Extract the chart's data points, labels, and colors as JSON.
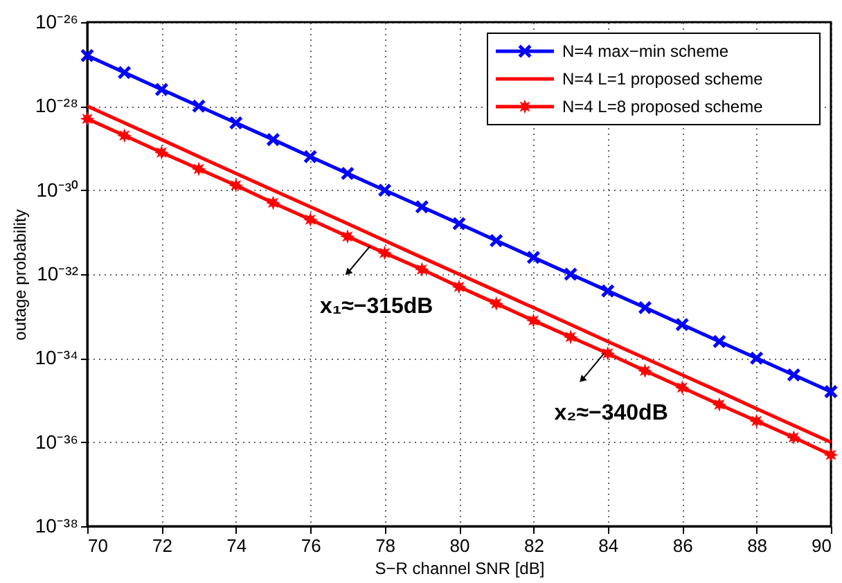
{
  "chart_data": {
    "type": "line",
    "xlabel": "S−R channel SNR [dB]",
    "ylabel": "outage probability",
    "x": [
      70,
      71,
      72,
      73,
      74,
      75,
      76,
      77,
      78,
      79,
      80,
      81,
      82,
      83,
      84,
      85,
      86,
      87,
      88,
      89,
      90
    ],
    "series": [
      {
        "name": "N=4 max−min scheme",
        "color": "#0000ff",
        "marker": "cross",
        "values": [
          1.6e-27,
          6.3e-28,
          2.5e-28,
          1e-28,
          4e-29,
          1.6e-29,
          6.3e-30,
          2.5e-30,
          1e-30,
          4e-31,
          1.6e-31,
          6.3e-32,
          2.5e-32,
          1e-32,
          4e-33,
          1.6e-33,
          6.3e-34,
          2.5e-34,
          1e-34,
          4e-35,
          1.6e-35
        ]
      },
      {
        "name": "N=4 L=1 proposed scheme",
        "color": "#ff0000",
        "marker": "none",
        "values": [
          1e-28,
          4e-29,
          1.6e-29,
          6.3e-30,
          2.5e-30,
          1e-30,
          4e-31,
          1.6e-31,
          6.3e-32,
          2.5e-32,
          1e-32,
          4e-33,
          1.6e-33,
          6.3e-34,
          2.5e-34,
          1e-34,
          4e-35,
          1.6e-35,
          6.3e-36,
          2.5e-36,
          1e-36
        ]
      },
      {
        "name": "N=4 L=8 proposed scheme",
        "color": "#ff0000",
        "marker": "star",
        "values": [
          5e-29,
          2e-29,
          7.9e-30,
          3.2e-30,
          1.3e-30,
          5e-31,
          2e-31,
          7.9e-32,
          3.2e-32,
          1.3e-32,
          5e-33,
          2e-33,
          7.9e-34,
          3.2e-34,
          1.3e-34,
          5e-35,
          2e-35,
          7.9e-36,
          3.2e-36,
          1.3e-36,
          5e-37
        ]
      }
    ],
    "log": "y",
    "xlim": [
      70,
      90
    ],
    "xticks": [
      70,
      72,
      74,
      76,
      78,
      80,
      82,
      84,
      86,
      88,
      90
    ],
    "ylim": [
      1e-38,
      1e-26
    ],
    "yticks": [
      {
        "value": 1e-38,
        "label": "10⁻³⁸"
      },
      {
        "value": 1e-36,
        "label": "10⁻³⁶"
      },
      {
        "value": 1e-34,
        "label": "10⁻³⁴"
      },
      {
        "value": 1e-32,
        "label": "10⁻³²"
      },
      {
        "value": 1e-30,
        "label": "10⁻³⁰"
      },
      {
        "value": 1e-28,
        "label": "10⁻²⁸"
      },
      {
        "value": 1e-26,
        "label": "10⁻²⁶"
      }
    ],
    "annotations": [
      {
        "text": "x₁≈−315dB",
        "x": 77.6,
        "y": 4.6e-32
      },
      {
        "text": "x₂≈−340dB",
        "x": 83.9,
        "y": 1.3e-34
      }
    ],
    "grid": true,
    "legend": "top right",
    "line_style": "solid"
  }
}
